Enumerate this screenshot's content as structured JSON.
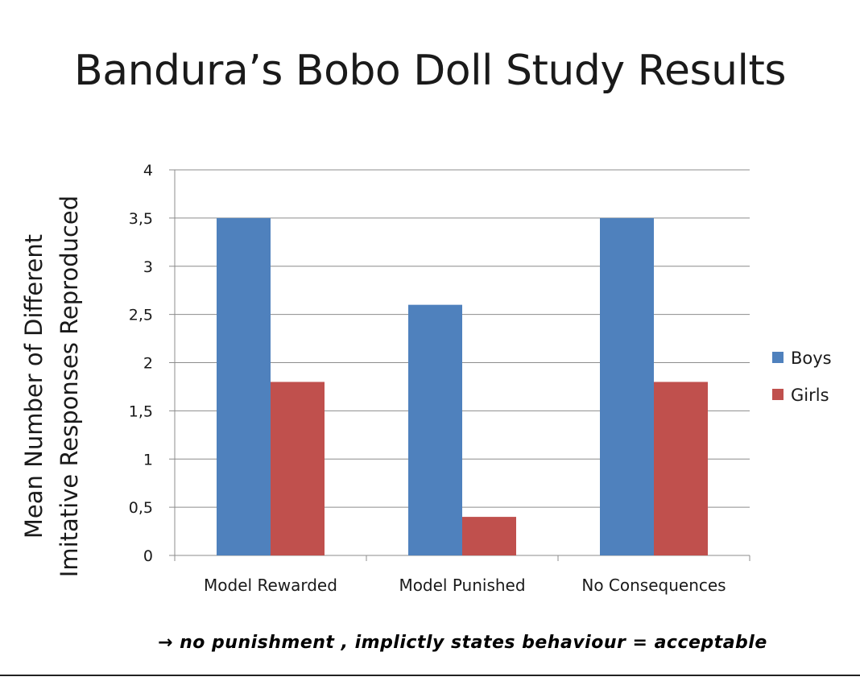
{
  "slide": {
    "title": "Bandura’s Bobo Doll Study Results",
    "note": "→ no punishment , implictly states behaviour = acceptable"
  },
  "chart_data": {
    "type": "bar",
    "title": "",
    "ylabel_lines": [
      "Mean Number of Different",
      "Imitative Responses Reproduced"
    ],
    "xlabel": "",
    "categories": [
      "Model Rewarded",
      "Model Punished",
      "No Consequences"
    ],
    "series": [
      {
        "name": "Boys",
        "color": "#4f81bd",
        "values": [
          3.5,
          2.6,
          3.5
        ]
      },
      {
        "name": "Girls",
        "color": "#c0504d",
        "values": [
          1.8,
          0.4,
          1.8
        ]
      }
    ],
    "ylim": [
      0,
      4
    ],
    "yticks": [
      0,
      0.5,
      1,
      1.5,
      2,
      2.5,
      3,
      3.5,
      4
    ],
    "ytick_labels": [
      "0",
      "0,5",
      "1",
      "1,5",
      "2",
      "2,5",
      "3",
      "3,5",
      "4"
    ],
    "grid": true,
    "legend_position": "right"
  }
}
